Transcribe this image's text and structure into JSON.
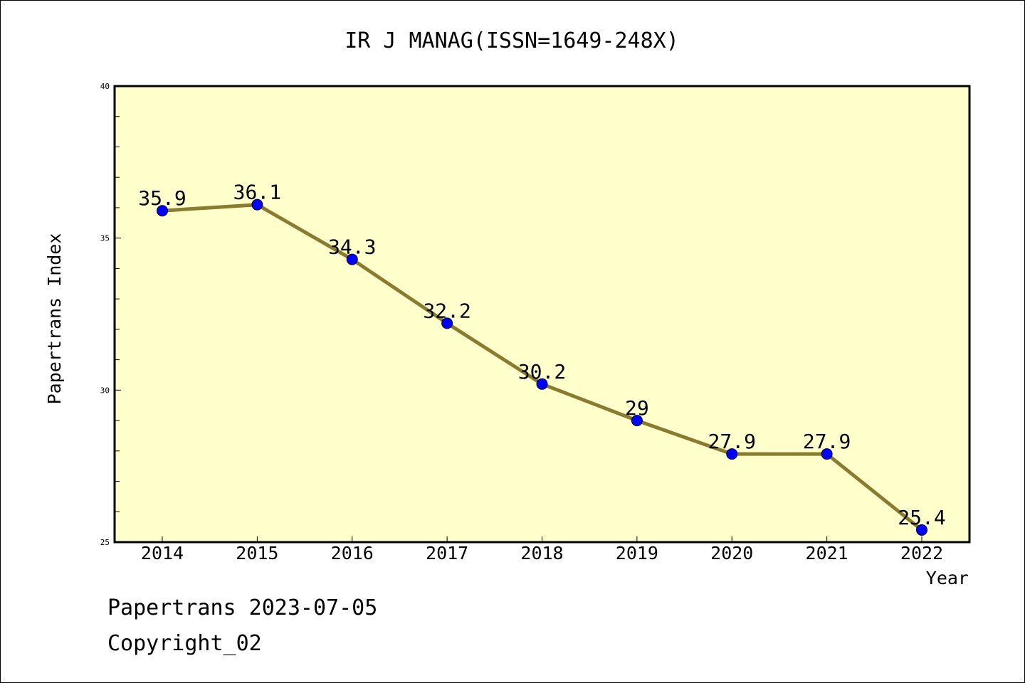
{
  "chart_data": {
    "type": "line",
    "title": "IR J MANAG(ISSN=1649-248X)",
    "xlabel": "Year",
    "ylabel": "Papertrans Index",
    "categories": [
      "2014",
      "2015",
      "2016",
      "2017",
      "2018",
      "2019",
      "2020",
      "2021",
      "2022"
    ],
    "series": [
      {
        "values": [
          35.9,
          36.1,
          34.3,
          32.2,
          30.2,
          29,
          27.9,
          27.9,
          25.4
        ],
        "data_labels": [
          "35.9",
          "36.1",
          "34.3",
          "32.2",
          "30.2",
          "29",
          "27.9",
          "27.9",
          "25.4"
        ]
      }
    ],
    "ylim": [
      25,
      40
    ],
    "yticks": [
      "25",
      "30",
      "35",
      "40"
    ],
    "grid": false,
    "legend": "none"
  },
  "footer": {
    "source": "Papertrans 2023-07-05",
    "copyright": "Copyright_02"
  },
  "colors": {
    "plot_background": "#ffffcc",
    "line": "#8b7b30",
    "marker": "#0000ff",
    "axis": "#000000"
  }
}
